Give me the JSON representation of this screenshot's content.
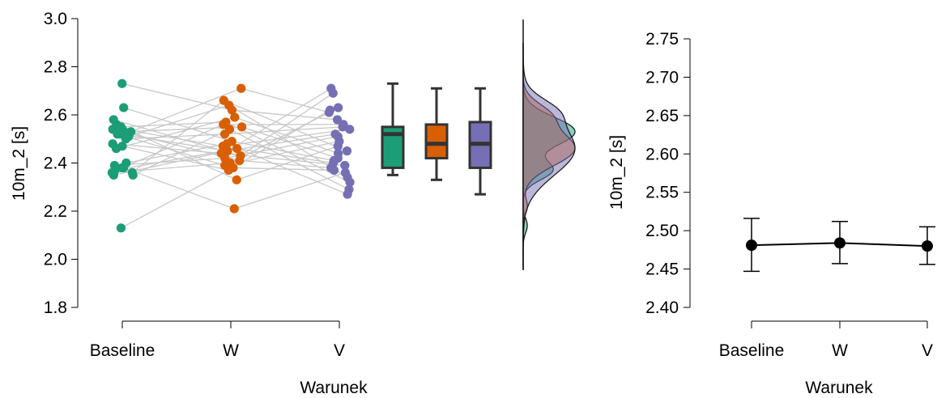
{
  "chart_data": [
    {
      "type": "raincloud",
      "xlabel": "Warunek",
      "ylabel": "10m_2 [s]",
      "categories": [
        "Baseline",
        "W",
        "V"
      ],
      "ylim": [
        1.8,
        3.0
      ],
      "yticks": [
        "1.8",
        "2.0",
        "2.2",
        "2.4",
        "2.6",
        "2.8",
        "3.0"
      ],
      "colors": {
        "Baseline": "#1b9e77",
        "W": "#d95f02",
        "V": "#7570b3"
      },
      "points": {
        "Baseline": [
          2.73,
          2.63,
          2.58,
          2.56,
          2.55,
          2.54,
          2.54,
          2.53,
          2.53,
          2.52,
          2.52,
          2.51,
          2.5,
          2.48,
          2.47,
          2.46,
          2.4,
          2.39,
          2.38,
          2.38,
          2.37,
          2.36,
          2.36,
          2.35,
          2.35,
          2.13
        ],
        "W": [
          2.71,
          2.66,
          2.64,
          2.62,
          2.59,
          2.57,
          2.56,
          2.55,
          2.54,
          2.52,
          2.49,
          2.48,
          2.47,
          2.46,
          2.45,
          2.45,
          2.44,
          2.43,
          2.42,
          2.41,
          2.4,
          2.39,
          2.38,
          2.37,
          2.33,
          2.21
        ],
        "V": [
          2.71,
          2.69,
          2.63,
          2.62,
          2.61,
          2.58,
          2.56,
          2.55,
          2.54,
          2.52,
          2.51,
          2.49,
          2.47,
          2.45,
          2.44,
          2.42,
          2.41,
          2.4,
          2.39,
          2.38,
          2.37,
          2.36,
          2.34,
          2.32,
          2.29,
          2.27
        ]
      },
      "boxplot": [
        {
          "name": "Baseline",
          "whisker_low": 2.35,
          "q1": 2.38,
          "median": 2.52,
          "q3": 2.55,
          "whisker_high": 2.73
        },
        {
          "name": "W",
          "whisker_low": 2.33,
          "q1": 2.42,
          "median": 2.48,
          "q3": 2.56,
          "whisker_high": 2.71
        },
        {
          "name": "V",
          "whisker_low": 2.27,
          "q1": 2.38,
          "median": 2.48,
          "q3": 2.57,
          "whisker_high": 2.71
        }
      ],
      "density": [
        {
          "name": "Baseline",
          "peaks": [
            {
              "y": 2.53,
              "sd": 0.06,
              "w": 1.0
            },
            {
              "y": 2.37,
              "sd": 0.04,
              "w": 0.55
            },
            {
              "y": 2.14,
              "sd": 0.03,
              "w": 0.08
            }
          ]
        },
        {
          "name": "W",
          "peaks": [
            {
              "y": 2.46,
              "sd": 0.07,
              "w": 1.0
            },
            {
              "y": 2.6,
              "sd": 0.05,
              "w": 0.45
            },
            {
              "y": 2.22,
              "sd": 0.03,
              "w": 0.08
            }
          ]
        },
        {
          "name": "V",
          "peaks": [
            {
              "y": 2.46,
              "sd": 0.11,
              "w": 1.0
            },
            {
              "y": 2.62,
              "sd": 0.05,
              "w": 0.35
            }
          ]
        }
      ]
    },
    {
      "type": "line",
      "xlabel": "Warunek",
      "ylabel": "10m_2 [s]",
      "categories": [
        "Baseline",
        "W",
        "V"
      ],
      "ylim": [
        2.4,
        2.75
      ],
      "yticks": [
        "2.40",
        "2.45",
        "2.50",
        "2.55",
        "2.60",
        "2.65",
        "2.70",
        "2.75"
      ],
      "means": [
        2.481,
        2.484,
        2.48
      ],
      "ci_low": [
        2.447,
        2.457,
        2.456
      ],
      "ci_high": [
        2.516,
        2.512,
        2.505
      ]
    }
  ]
}
